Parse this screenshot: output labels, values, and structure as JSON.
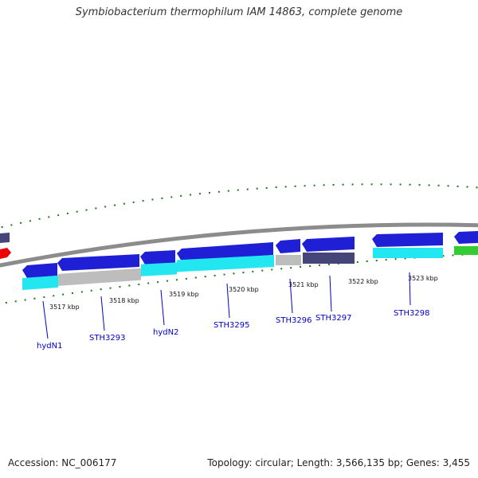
{
  "title": "Symbiobacterium thermophilum IAM 14863, complete genome",
  "footer": {
    "accession": "Accession: NC_006177",
    "summary": "Topology: circular; Length: 3,566,135 bp; Genes: 3,455"
  },
  "colors": {
    "blue": "#1f1fd6",
    "cyan": "#22e6f0",
    "gray": "#bdbdbd",
    "navy": "#45457a",
    "red": "#ee0000",
    "green": "#33cc33",
    "backbone": "#8c8c8c",
    "tick": "#1a7a1a",
    "label": "#0000cc"
  },
  "kbp_labels": [
    "3517 kbp",
    "3518 kbp",
    "3519 kbp",
    "3520 kbp",
    "3521 kbp",
    "3522 kbp",
    "3523 kbp"
  ],
  "gene_labels": [
    "hydN1",
    "STH3293",
    "hydN2",
    "STH3295",
    "STH3296",
    "STH3297",
    "STH3298"
  ]
}
